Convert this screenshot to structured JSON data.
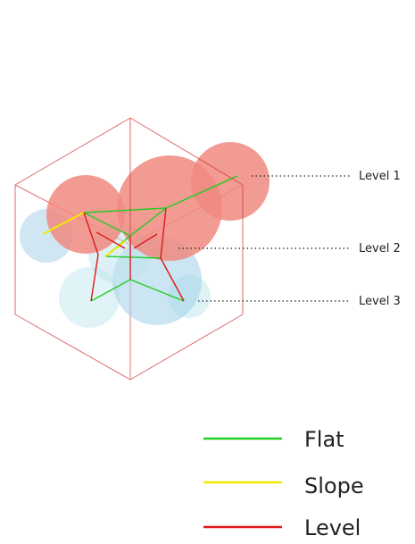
{
  "colors": {
    "flat": "#22cc22",
    "slope": "#f2ea00",
    "level": "#e01818",
    "cube_edge": "#d23a3a",
    "sphere_warm": "#f08a80",
    "sphere_blue": "#a9d4ea",
    "sphere_pale": "#cfeef2",
    "text": "#222222"
  },
  "levels": [
    {
      "label": "Level 1"
    },
    {
      "label": "Level 2"
    },
    {
      "label": "Level 3"
    }
  ],
  "legend": [
    {
      "label": "Flat",
      "color_key": "flat"
    },
    {
      "label": "Slope",
      "color_key": "slope"
    },
    {
      "label": "Level",
      "color_key": "level"
    }
  ]
}
